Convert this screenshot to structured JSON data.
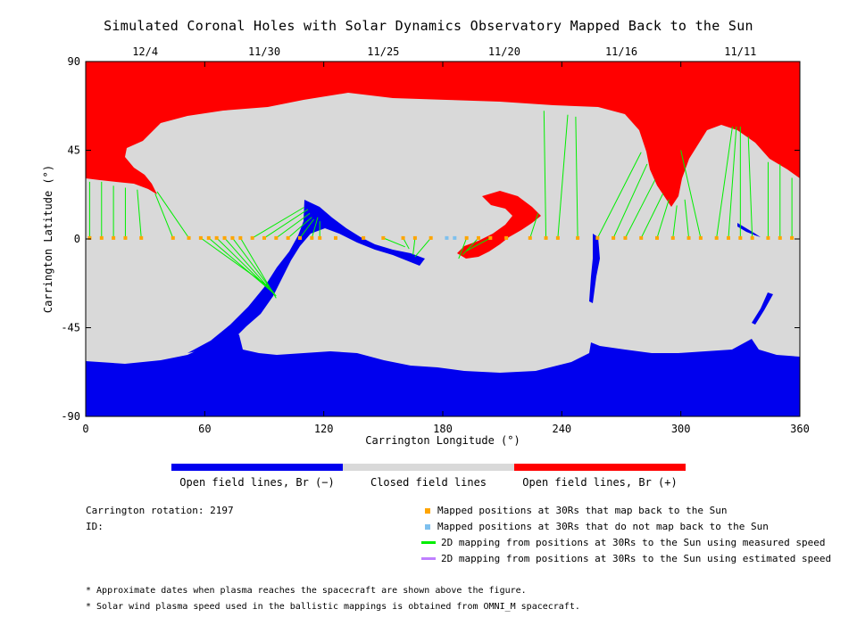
{
  "chart_data": {
    "type": "heatmap",
    "title": "Simulated Coronal Holes with Solar Dynamics Observatory Mapped Back to the Sun",
    "xlabel": "Carrington Longitude (°)",
    "ylabel": "Carrington Latitude (°)",
    "xlim": [
      0,
      360
    ],
    "ylim": [
      -90,
      90
    ],
    "x_ticks": [
      0,
      60,
      120,
      180,
      240,
      300,
      360
    ],
    "y_ticks": [
      -90,
      -45,
      0,
      45,
      90
    ],
    "top_axis": {
      "labels": [
        {
          "label": "12/4",
          "lon": 30
        },
        {
          "label": "11/30",
          "lon": 90
        },
        {
          "label": "11/25",
          "lon": 150
        },
        {
          "label": "11/20",
          "lon": 211
        },
        {
          "label": "11/16",
          "lon": 270
        },
        {
          "label": "11/11",
          "lon": 330
        }
      ]
    },
    "colors": {
      "open_negative": "#0000ee",
      "closed": "#d9d9d9",
      "open_positive": "#ff0000",
      "mapped": "#ffa500",
      "unmapped": "#7ec0ee",
      "measured_line": "#00ee00",
      "estimated_line": "#bf7fff"
    },
    "mapped_points": [
      {
        "lon": 2,
        "lat": 0.5,
        "src_lat": 29,
        "src_lon": 2
      },
      {
        "lon": 8,
        "lat": 0.5,
        "src_lat": 29,
        "src_lon": 8
      },
      {
        "lon": 14,
        "lat": 0.5,
        "src_lat": 27,
        "src_lon": 14
      },
      {
        "lon": 20,
        "lat": 0.5,
        "src_lat": 26,
        "src_lon": 20
      },
      {
        "lon": 28,
        "lat": 0.5,
        "src_lat": 25,
        "src_lon": 26
      },
      {
        "lon": 44,
        "lat": 0.5,
        "src_lat": 23,
        "src_lon": 35
      },
      {
        "lon": 52,
        "lat": 0.5,
        "src_lat": 24,
        "src_lon": 36
      },
      {
        "lon": 58,
        "lat": 0.5,
        "src_lat": -24,
        "src_lon": 92
      },
      {
        "lon": 62,
        "lat": 0.5,
        "src_lat": -26,
        "src_lon": 93
      },
      {
        "lon": 66,
        "lat": 0.5,
        "src_lat": -27,
        "src_lon": 94
      },
      {
        "lon": 70,
        "lat": 0.5,
        "src_lat": -28,
        "src_lon": 95
      },
      {
        "lon": 74,
        "lat": 0.5,
        "src_lat": -29,
        "src_lon": 96
      },
      {
        "lon": 78,
        "lat": 0.5,
        "src_lat": -30,
        "src_lon": 96
      },
      {
        "lon": 84,
        "lat": 0.5,
        "src_lat": 16,
        "src_lon": 110
      },
      {
        "lon": 90,
        "lat": 0.5,
        "src_lat": 15,
        "src_lon": 112
      },
      {
        "lon": 96,
        "lat": 0.5,
        "src_lat": 13,
        "src_lon": 113
      },
      {
        "lon": 102,
        "lat": 0.5,
        "src_lat": 11,
        "src_lon": 114
      },
      {
        "lon": 108,
        "lat": 0.5,
        "src_lat": 10,
        "src_lon": 115
      },
      {
        "lon": 114,
        "lat": 0.5,
        "src_lat": 11,
        "src_lon": 117
      },
      {
        "lon": 118,
        "lat": 0.5,
        "src_lat": 9,
        "src_lon": 118
      },
      {
        "lon": 126,
        "lat": 0.5,
        "src_lat": 0.5,
        "src_lon": 126
      },
      {
        "lon": 140,
        "lat": 0.5,
        "src_lat": 0.5,
        "src_lon": 140
      },
      {
        "lon": 150,
        "lat": 0.5,
        "src_lat": -4,
        "src_lon": 161
      },
      {
        "lon": 160,
        "lat": 0.5,
        "src_lat": -5,
        "src_lon": 163
      },
      {
        "lon": 166,
        "lat": 0.5,
        "src_lat": -8,
        "src_lon": 165
      },
      {
        "lon": 174,
        "lat": 0.5,
        "src_lat": -9,
        "src_lon": 166
      },
      {
        "lon": 192,
        "lat": 0.5,
        "src_lat": -10,
        "src_lon": 188
      },
      {
        "lon": 198,
        "lat": 0.5,
        "src_lat": -8,
        "src_lon": 190
      },
      {
        "lon": 204,
        "lat": 0.5,
        "src_lat": -6,
        "src_lon": 192
      },
      {
        "lon": 212,
        "lat": 0.5,
        "src_lat": 0.5,
        "src_lon": 212
      },
      {
        "lon": 224,
        "lat": 0.5,
        "src_lat": 13,
        "src_lon": 228
      },
      {
        "lon": 232,
        "lat": 0.5,
        "src_lat": 65,
        "src_lon": 231
      },
      {
        "lon": 238,
        "lat": 0.5,
        "src_lat": 63,
        "src_lon": 243
      },
      {
        "lon": 248,
        "lat": 0.5,
        "src_lat": 62,
        "src_lon": 247
      },
      {
        "lon": 258,
        "lat": 0.5,
        "src_lat": 44,
        "src_lon": 280
      },
      {
        "lon": 266,
        "lat": 0.5,
        "src_lat": 38,
        "src_lon": 283
      },
      {
        "lon": 272,
        "lat": 0.5,
        "src_lat": 30,
        "src_lon": 287
      },
      {
        "lon": 280,
        "lat": 0.5,
        "src_lat": 23,
        "src_lon": 291
      },
      {
        "lon": 288,
        "lat": 0.5,
        "src_lat": 20,
        "src_lon": 294
      },
      {
        "lon": 296,
        "lat": 0.5,
        "src_lat": 17,
        "src_lon": 298
      },
      {
        "lon": 304,
        "lat": 0.5,
        "src_lat": 20,
        "src_lon": 302
      },
      {
        "lon": 310,
        "lat": 0.5,
        "src_lat": 45,
        "src_lon": 300
      },
      {
        "lon": 318,
        "lat": 0.5,
        "src_lat": 57,
        "src_lon": 326
      },
      {
        "lon": 324,
        "lat": 0.5,
        "src_lat": 57,
        "src_lon": 328
      },
      {
        "lon": 330,
        "lat": 0.5,
        "src_lat": 57,
        "src_lon": 330
      },
      {
        "lon": 336,
        "lat": 0.5,
        "src_lat": 52,
        "src_lon": 334
      },
      {
        "lon": 344,
        "lat": 0.5,
        "src_lat": 39,
        "src_lon": 344
      },
      {
        "lon": 350,
        "lat": 0.5,
        "src_lat": 38,
        "src_lon": 350
      },
      {
        "lon": 356,
        "lat": 0.5,
        "src_lat": 31,
        "src_lon": 356
      }
    ],
    "unmapped_points": [
      {
        "lon": 182,
        "lat": 0.5
      },
      {
        "lon": 186,
        "lat": 0.5
      }
    ]
  },
  "colorbar": {
    "labels": [
      "Open field lines, Br (−)",
      "Closed field lines",
      "Open field lines, Br (+)"
    ]
  },
  "info": {
    "rotation": "Carrington rotation: 2197",
    "id": "ID:"
  },
  "legend": [
    {
      "label": "Mapped positions at 30Rs that map back to the Sun",
      "kind": "square",
      "color": "#ffa500"
    },
    {
      "label": "Mapped positions at 30Rs that do not map back to the Sun",
      "kind": "square",
      "color": "#7ec0ee"
    },
    {
      "label": "2D mapping from positions at 30Rs to the Sun using measured speed",
      "kind": "line",
      "color": "#00ee00"
    },
    {
      "label": "2D mapping from positions at 30Rs to the Sun using estimated speed",
      "kind": "line",
      "color": "#bf7fff"
    }
  ],
  "notes": [
    "* Approximate dates when plasma reaches the spacecraft are shown above the figure.",
    "* Solar wind plasma speed used in the ballistic mappings is obtained from OMNI_M spacecraft."
  ]
}
